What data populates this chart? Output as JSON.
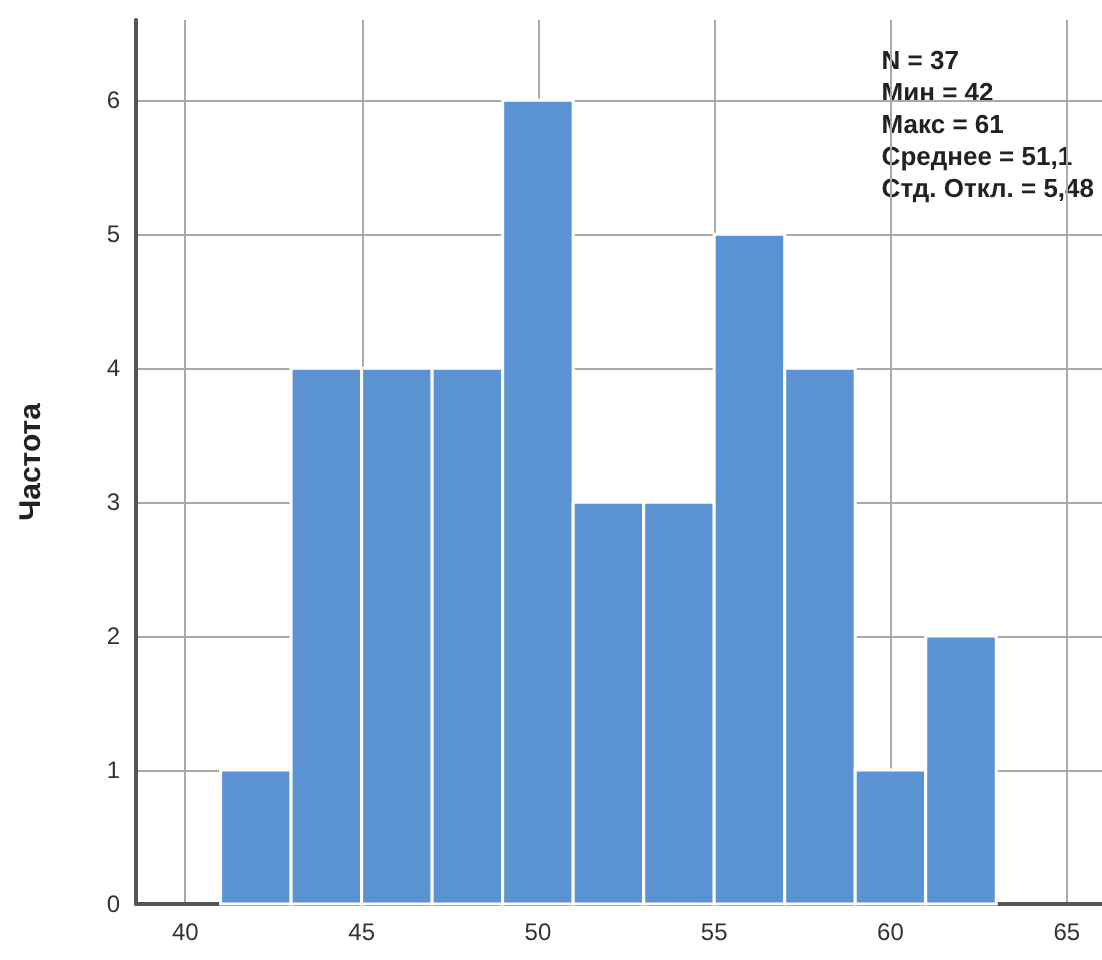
{
  "chart_data": {
    "type": "histogram",
    "ylabel": "Частота",
    "bins": [
      41,
      43,
      45,
      47,
      49,
      51,
      53,
      55,
      57,
      59,
      61,
      63
    ],
    "values": [
      1,
      4,
      4,
      4,
      6,
      3,
      3,
      5,
      4,
      1,
      2
    ],
    "color": "#5b92d2",
    "xlim": [
      38.6,
      66
    ],
    "xticks": [
      40,
      45,
      50,
      55,
      60,
      65
    ],
    "ylim": [
      0,
      6.6
    ],
    "yticks": [
      0,
      1,
      2,
      3,
      4,
      5,
      6
    ],
    "grid": true,
    "annotations": [
      "N = 37",
      "Мин = 42",
      "Макс = 61",
      "Среднее = 51,1",
      "Стд. Откл. = 5,48"
    ]
  }
}
